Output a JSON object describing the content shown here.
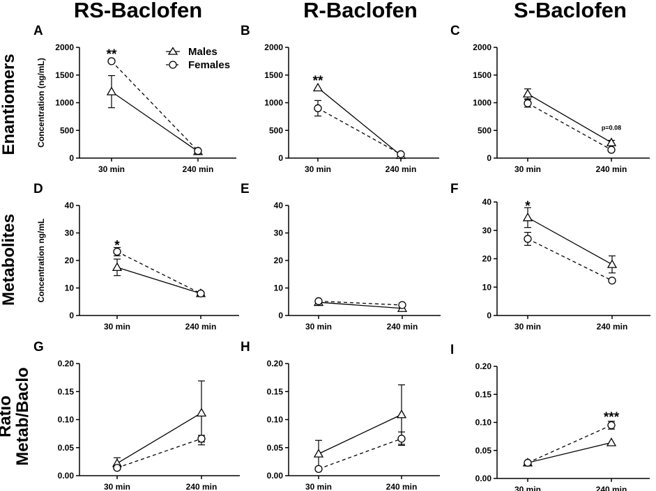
{
  "figure": {
    "column_titles": [
      "RS-Baclofen",
      "R-Baclofen",
      "S-Baclofen"
    ],
    "row_titles": [
      [
        "Enantiomers"
      ],
      [
        "Metabolites"
      ],
      [
        "Ratio",
        "Metab/Baclo"
      ]
    ],
    "legend": {
      "males": "Males",
      "females": "Females"
    }
  },
  "chart_data": [
    {
      "panel": "A",
      "type": "line",
      "title": "RS-Baclofen",
      "ylabel": "Concentration (ng/mL)",
      "categories": [
        "30 min",
        "240 min"
      ],
      "ylim": [
        0,
        2000
      ],
      "yticks": [
        "0",
        "500",
        "1000",
        "1500",
        "2000"
      ],
      "series": [
        {
          "name": "Males",
          "marker": "triangle",
          "style": "solid",
          "values": [
            1200,
            120
          ],
          "errors": [
            290,
            20
          ]
        },
        {
          "name": "Females",
          "marker": "circle",
          "style": "dashed",
          "values": [
            1750,
            130
          ],
          "errors": [
            20,
            20
          ]
        }
      ],
      "annotations": [
        {
          "text": "**",
          "category": "30 min",
          "y": 1900
        }
      ]
    },
    {
      "panel": "B",
      "type": "line",
      "title": "R-Baclofen",
      "ylabel": "",
      "categories": [
        "30 min",
        "240 min"
      ],
      "ylim": [
        0,
        2000
      ],
      "yticks": [
        "0",
        "500",
        "1000",
        "1500",
        "2000"
      ],
      "series": [
        {
          "name": "Males",
          "marker": "triangle",
          "style": "solid",
          "values": [
            1270,
            50
          ],
          "errors": [
            0,
            0
          ]
        },
        {
          "name": "Females",
          "marker": "circle",
          "style": "dashed",
          "values": [
            900,
            70
          ],
          "errors": [
            140,
            0
          ]
        }
      ],
      "annotations": [
        {
          "text": "**",
          "category": "30 min",
          "y": 1420
        }
      ]
    },
    {
      "panel": "C",
      "type": "line",
      "title": "S-Baclofen",
      "ylabel": "",
      "categories": [
        "30 min",
        "240 min"
      ],
      "ylim": [
        0,
        2000
      ],
      "yticks": [
        "0",
        "500",
        "1000",
        "1500",
        "2000"
      ],
      "series": [
        {
          "name": "Males",
          "marker": "triangle",
          "style": "solid",
          "values": [
            1160,
            280
          ],
          "errors": [
            90,
            40
          ]
        },
        {
          "name": "Females",
          "marker": "circle",
          "style": "dashed",
          "values": [
            990,
            150
          ],
          "errors": [
            70,
            20
          ]
        }
      ],
      "annotations": [
        {
          "text": "p=0.08",
          "category": "240 min",
          "y": 510,
          "small": true
        }
      ]
    },
    {
      "panel": "D",
      "type": "line",
      "title": "RS-Baclofen",
      "ylabel": "Concentration ng/mL",
      "categories": [
        "30 min",
        "240 min"
      ],
      "ylim": [
        0,
        40
      ],
      "yticks": [
        "0",
        "10",
        "20",
        "30",
        "40"
      ],
      "series": [
        {
          "name": "Males",
          "marker": "triangle",
          "style": "solid",
          "values": [
            17.5,
            8
          ],
          "errors": [
            3,
            0
          ]
        },
        {
          "name": "Females",
          "marker": "circle",
          "style": "dashed",
          "values": [
            23.2,
            8
          ],
          "errors": [
            1.5,
            0
          ]
        }
      ],
      "annotations": [
        {
          "text": "*",
          "category": "30 min",
          "y": 26
        }
      ]
    },
    {
      "panel": "E",
      "type": "line",
      "title": "R-Baclofen",
      "ylabel": "",
      "categories": [
        "30 min",
        "240 min"
      ],
      "ylim": [
        0,
        40
      ],
      "yticks": [
        "0",
        "10",
        "20",
        "30",
        "40"
      ],
      "series": [
        {
          "name": "Males",
          "marker": "triangle",
          "style": "solid",
          "values": [
            4.8,
            2.6
          ],
          "errors": [
            0,
            0
          ]
        },
        {
          "name": "Females",
          "marker": "circle",
          "style": "dashed",
          "values": [
            5.2,
            3.8
          ],
          "errors": [
            0,
            0
          ]
        }
      ],
      "annotations": []
    },
    {
      "panel": "F",
      "type": "line",
      "title": "S-Baclofen",
      "ylabel": "",
      "categories": [
        "30 min",
        "240 min"
      ],
      "ylim": [
        0,
        40
      ],
      "yticks": [
        "0",
        "10",
        "20",
        "30",
        "40"
      ],
      "series": [
        {
          "name": "Males",
          "marker": "triangle",
          "style": "solid",
          "values": [
            34.5,
            18
          ],
          "errors": [
            3.5,
            3
          ]
        },
        {
          "name": "Females",
          "marker": "circle",
          "style": "dashed",
          "values": [
            27,
            12.3
          ],
          "errors": [
            2.3,
            0
          ]
        }
      ],
      "annotations": [
        {
          "text": "*",
          "category": "30 min",
          "y": 39
        }
      ]
    },
    {
      "panel": "G",
      "type": "line",
      "title": "RS-Baclofen",
      "ylabel": "",
      "categories": [
        "30 min",
        "240 min"
      ],
      "ylim": [
        0,
        0.2
      ],
      "yticks": [
        "0.00",
        "0.05",
        "0.10",
        "0.15",
        "0.20"
      ],
      "series": [
        {
          "name": "Males",
          "marker": "triangle",
          "style": "solid",
          "values": [
            0.022,
            0.112
          ],
          "errors": [
            0.01,
            0.057
          ]
        },
        {
          "name": "Females",
          "marker": "circle",
          "style": "dashed",
          "values": [
            0.014,
            0.066
          ],
          "errors": [
            0.003,
            0.006
          ]
        }
      ],
      "annotations": []
    },
    {
      "panel": "H",
      "type": "line",
      "title": "R-Baclofen",
      "ylabel": "",
      "categories": [
        "30 min",
        "240 min"
      ],
      "ylim": [
        0,
        0.2
      ],
      "yticks": [
        "0.00",
        "0.05",
        "0.10",
        "0.15",
        "0.20"
      ],
      "series": [
        {
          "name": "Males",
          "marker": "triangle",
          "style": "solid",
          "values": [
            0.039,
            0.109
          ],
          "errors": [
            0.024,
            0.053
          ]
        },
        {
          "name": "Females",
          "marker": "circle",
          "style": "dashed",
          "values": [
            0.012,
            0.066
          ],
          "errors": [
            0.003,
            0.012
          ]
        }
      ],
      "annotations": []
    },
    {
      "panel": "I",
      "type": "line",
      "title": "S-Baclofen",
      "ylabel": "",
      "categories": [
        "30 min",
        "240 min"
      ],
      "ylim": [
        0,
        0.2
      ],
      "yticks": [
        "0.00",
        "0.05",
        "0.10",
        "0.15",
        "0.20"
      ],
      "series": [
        {
          "name": "Males",
          "marker": "triangle",
          "style": "solid",
          "values": [
            0.028,
            0.064
          ],
          "errors": [
            0,
            0
          ]
        },
        {
          "name": "Females",
          "marker": "circle",
          "style": "dashed",
          "values": [
            0.028,
            0.095
          ],
          "errors": [
            0,
            0.007
          ]
        }
      ],
      "annotations": [
        {
          "text": "***",
          "category": "240 min",
          "y": 0.112
        }
      ]
    }
  ]
}
